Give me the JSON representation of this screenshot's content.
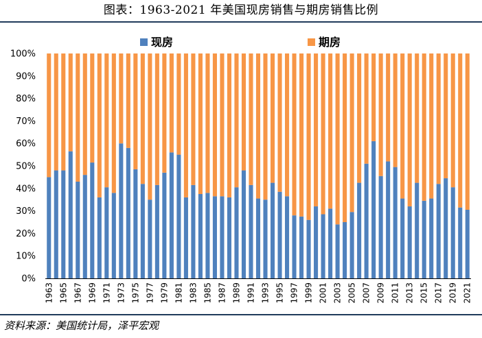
{
  "title": "图表：1963-2021 年美国现房销售与期房销售比例",
  "source": "资料来源：美国统计局，泽平宏观",
  "colors": {
    "existing": "#4f81bd",
    "presale": "#f79646",
    "rule": "#1f3a5a"
  },
  "chart_data": {
    "type": "bar",
    "stacked": true,
    "percent": true,
    "title": "",
    "xlabel": "",
    "ylabel": "",
    "ylim": [
      0,
      100
    ],
    "y_ticks": [
      "0%",
      "10%",
      "20%",
      "30%",
      "40%",
      "50%",
      "60%",
      "70%",
      "80%",
      "90%",
      "100%"
    ],
    "legend_position": "top",
    "categories": [
      "1963",
      "1964",
      "1965",
      "1966",
      "1967",
      "1968",
      "1969",
      "1970",
      "1971",
      "1972",
      "1973",
      "1974",
      "1975",
      "1976",
      "1977",
      "1978",
      "1979",
      "1980",
      "1981",
      "1982",
      "1983",
      "1984",
      "1985",
      "1986",
      "1987",
      "1988",
      "1989",
      "1990",
      "1991",
      "1992",
      "1993",
      "1994",
      "1995",
      "1996",
      "1997",
      "1998",
      "1999",
      "2000",
      "2001",
      "2002",
      "2003",
      "2004",
      "2005",
      "2006",
      "2007",
      "2008",
      "2009",
      "2010",
      "2011",
      "2012",
      "2013",
      "2014",
      "2015",
      "2016",
      "2017",
      "2018",
      "2019",
      "2020",
      "2021"
    ],
    "x_tick_labels": [
      "1963",
      "1965",
      "1967",
      "1969",
      "1971",
      "1973",
      "1975",
      "1977",
      "1979",
      "1981",
      "1983",
      "1985",
      "1987",
      "1989",
      "1991",
      "1993",
      "1995",
      "1997",
      "1999",
      "2001",
      "2003",
      "2005",
      "2007",
      "2009",
      "2011",
      "2013",
      "2015",
      "2017",
      "2019",
      "2021"
    ],
    "series": [
      {
        "name": "现房",
        "values": [
          45,
          48,
          48,
          56.5,
          43,
          46,
          51.5,
          36,
          40.5,
          38,
          60,
          58,
          48.5,
          42,
          35,
          41.5,
          47,
          56,
          55,
          36,
          41.5,
          37.5,
          38,
          36.5,
          36.5,
          36,
          40.5,
          48,
          41.5,
          35.5,
          35,
          42.5,
          38.5,
          36.5,
          28,
          27.5,
          26,
          32,
          28.5,
          31,
          24,
          25,
          29.5,
          42.5,
          51,
          61,
          45.5,
          52,
          49.5,
          35.5,
          32,
          42.5,
          34.5,
          35.5,
          42,
          44.5,
          40.5,
          31.5,
          30.5
        ]
      },
      {
        "name": "期房",
        "values": [
          55,
          52,
          52,
          43.5,
          57,
          54,
          48.5,
          64,
          59.5,
          62,
          40,
          42,
          51.5,
          58,
          65,
          58.5,
          53,
          44,
          45,
          64,
          58.5,
          62.5,
          62,
          63.5,
          63.5,
          64,
          59.5,
          52,
          58.5,
          64.5,
          65,
          57.5,
          61.5,
          63.5,
          72,
          72.5,
          74,
          68,
          71.5,
          69,
          76,
          75,
          70.5,
          57.5,
          49,
          39,
          54.5,
          48,
          50.5,
          64.5,
          68,
          57.5,
          65.5,
          64.5,
          58,
          55.5,
          59.5,
          68.5,
          69.5
        ]
      }
    ]
  }
}
